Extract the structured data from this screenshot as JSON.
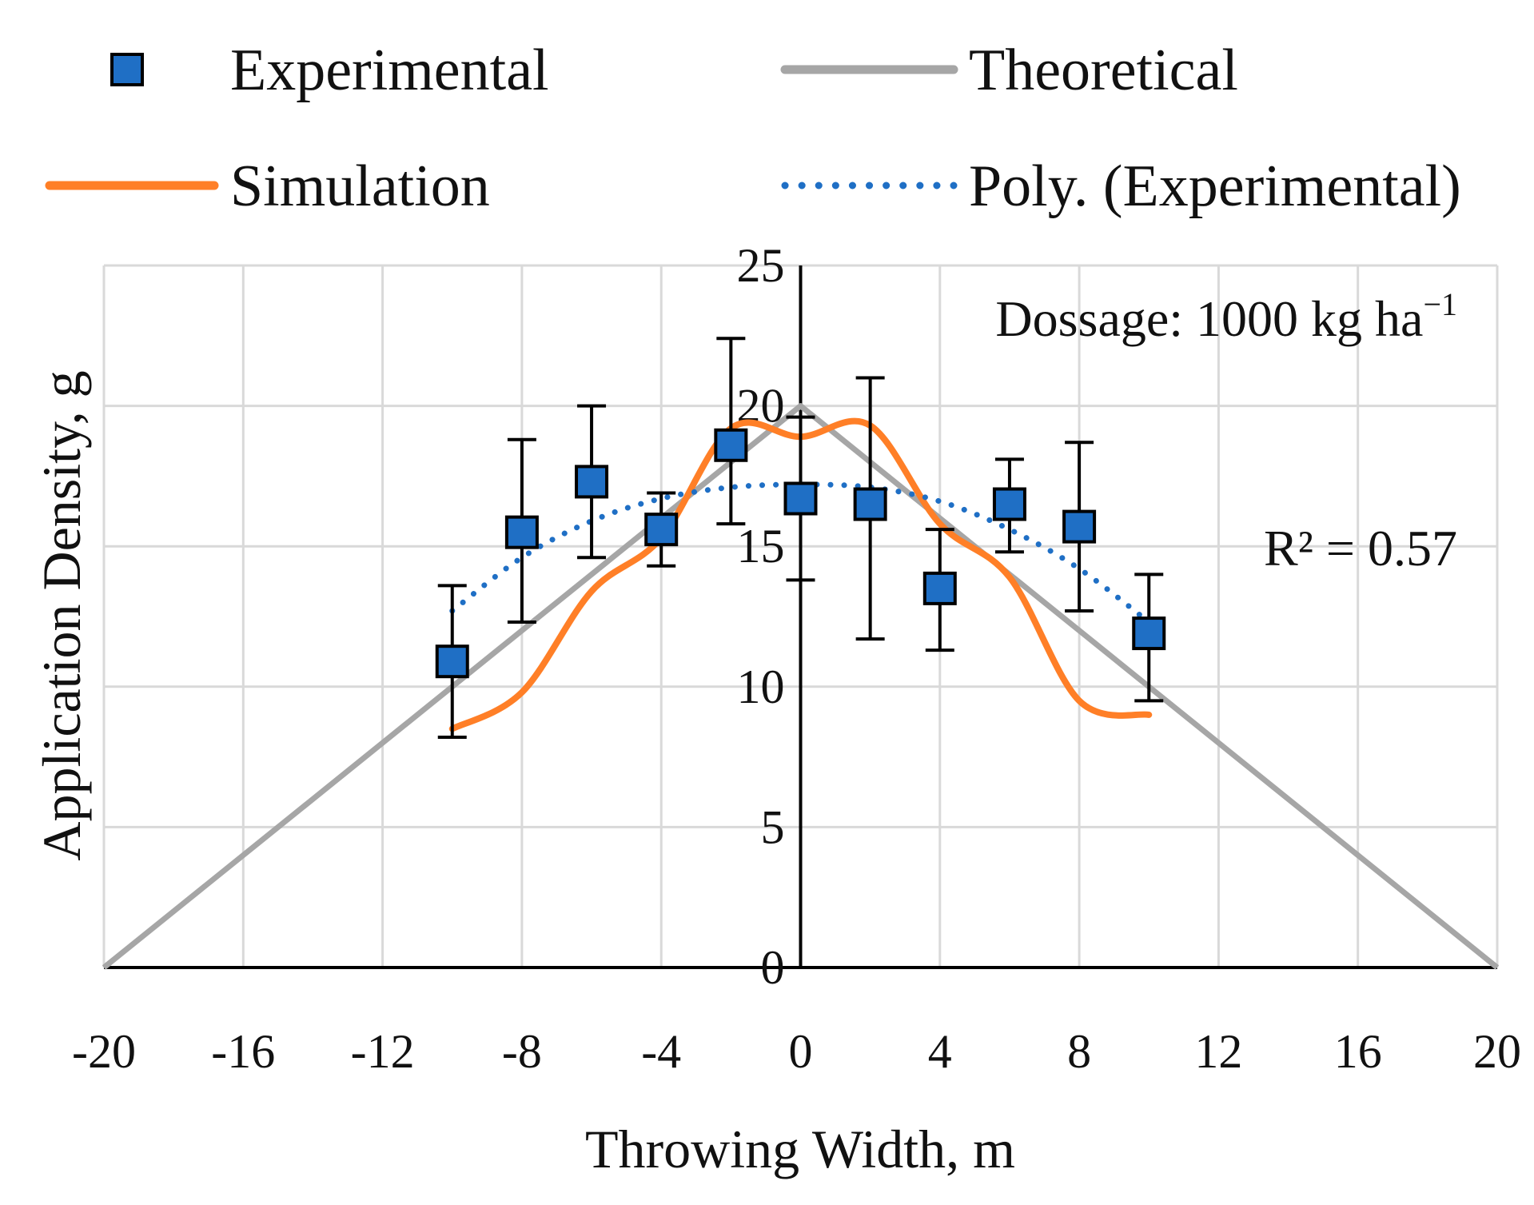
{
  "chart_data": {
    "type": "scatter",
    "xlabel": "Throwing Width, m",
    "ylabel": "Application Density, g",
    "xlim": [
      -20,
      20
    ],
    "ylim": [
      0,
      25
    ],
    "x_ticks": [
      "-20",
      "-16",
      "-12",
      "-8",
      "-4",
      "0",
      "4",
      "8",
      "12",
      "16",
      "20"
    ],
    "y_ticks": [
      "0",
      "5",
      "10",
      "15",
      "20",
      "25"
    ],
    "grid": true,
    "legend_position": "top",
    "colors": {
      "experimental": "#1f6fc5",
      "theoretical": "#a6a6a6",
      "simulation": "#ff7f27",
      "poly": "#1f6fc5",
      "grid": "#d9d9d9",
      "axis": "#000000"
    },
    "series": [
      {
        "name": "Experimental",
        "kind": "markers-with-error-bars",
        "x": [
          -10,
          -8,
          -6,
          -4,
          -2,
          0,
          2,
          4,
          6,
          8,
          10
        ],
        "y": [
          10.9,
          15.5,
          17.3,
          15.6,
          18.6,
          16.7,
          16.5,
          13.5,
          16.5,
          15.7,
          11.9
        ],
        "err_low": [
          8.2,
          12.3,
          14.6,
          14.3,
          15.8,
          13.8,
          11.7,
          11.3,
          14.8,
          12.7,
          9.5
        ],
        "err_high": [
          13.6,
          18.8,
          20.0,
          16.9,
          22.4,
          19.6,
          21.0,
          15.6,
          18.1,
          18.7,
          14.0
        ]
      },
      {
        "name": "Theoretical",
        "kind": "line",
        "x": [
          -20,
          0,
          20
        ],
        "y": [
          0,
          20,
          0
        ]
      },
      {
        "name": "Simulation",
        "kind": "smooth-line",
        "x": [
          -10,
          -8,
          -6,
          -4,
          -2,
          0,
          2,
          4,
          6,
          8,
          10
        ],
        "y": [
          8.5,
          9.8,
          13.4,
          15.3,
          19.2,
          18.9,
          19.3,
          15.8,
          13.9,
          9.5,
          9.0
        ]
      },
      {
        "name": "Poly. (Experimental)",
        "kind": "dotted-trendline",
        "x": [
          -10,
          -8,
          -6,
          -4,
          -2,
          0,
          2,
          4,
          6,
          8,
          10
        ],
        "y": [
          12.7,
          14.6,
          15.9,
          16.7,
          17.1,
          17.2,
          17.1,
          16.6,
          15.6,
          14.2,
          12.3
        ]
      }
    ],
    "legend": [
      "Experimental",
      "Theoretical",
      "Simulation",
      "Poly. (Experimental)"
    ],
    "annotations": {
      "dosage": "Dossage: 1000 kg ha",
      "dosage_sup": "−1",
      "r2": "R² = 0.57"
    }
  }
}
